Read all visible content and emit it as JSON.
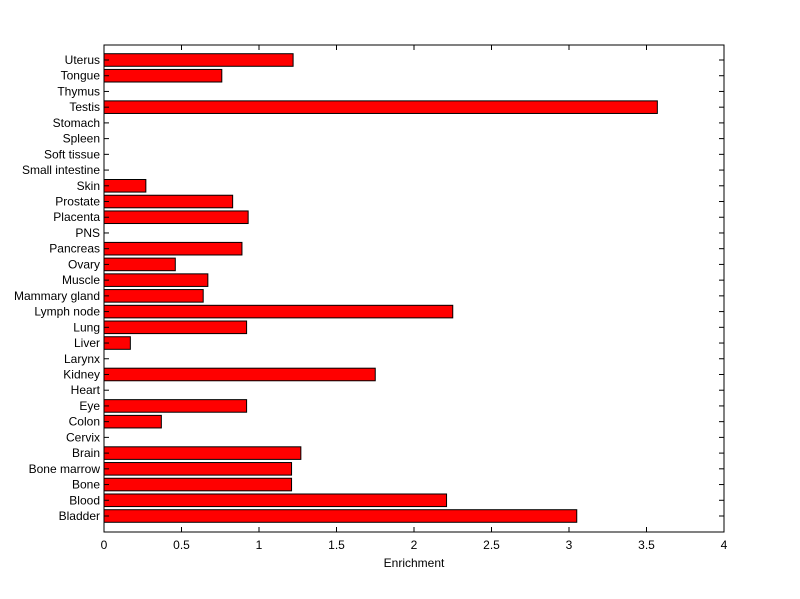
{
  "chart_data": {
    "type": "bar",
    "orientation": "horizontal",
    "xlabel": "Enrichment",
    "ylabel": "",
    "title": "",
    "xlim": [
      0,
      4
    ],
    "xticks": [
      0,
      0.5,
      1,
      1.5,
      2,
      2.5,
      3,
      3.5,
      4
    ],
    "xtick_labels": [
      "0",
      "0.5",
      "1",
      "1.5",
      "2",
      "2.5",
      "3",
      "3.5",
      "4"
    ],
    "grid": false,
    "bar_color": "#ff0000",
    "bar_edge_color": "#000000",
    "categories": [
      "Bladder",
      "Blood",
      "Bone",
      "Bone marrow",
      "Brain",
      "Cervix",
      "Colon",
      "Eye",
      "Heart",
      "Kidney",
      "Larynx",
      "Liver",
      "Lung",
      "Lymph node",
      "Mammary gland",
      "Muscle",
      "Ovary",
      "Pancreas",
      "PNS",
      "Placenta",
      "Prostate",
      "Skin",
      "Small intestine",
      "Soft tissue",
      "Spleen",
      "Stomach",
      "Testis",
      "Thymus",
      "Tongue",
      "Uterus"
    ],
    "values": [
      3.05,
      2.21,
      1.21,
      1.21,
      1.27,
      0,
      0.37,
      0.92,
      0,
      1.75,
      0,
      0.17,
      0.92,
      2.25,
      0.64,
      0.67,
      0.46,
      0.89,
      0,
      0.93,
      0.83,
      0.27,
      0,
      0,
      0,
      0,
      3.57,
      0,
      0.76,
      1.22
    ]
  }
}
